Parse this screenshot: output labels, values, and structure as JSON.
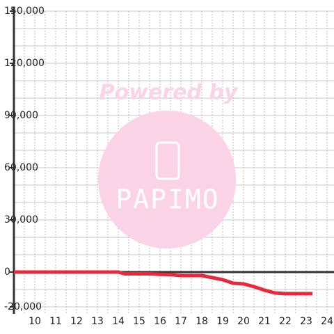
{
  "chart_data": {
    "type": "line",
    "watermark": {
      "top": "Powered by",
      "bottom": "PAPIMO"
    },
    "x": [
      9,
      14,
      14.3,
      15.5,
      16,
      16.5,
      17,
      18,
      18.5,
      19,
      19.5,
      20,
      20.5,
      21,
      21.5,
      22,
      23.3
    ],
    "series": [
      {
        "color": "#e8283c",
        "values": [
          0,
          0,
          -1000,
          -1000,
          -1300,
          -1500,
          -2000,
          -2000,
          -3200,
          -4400,
          -6400,
          -6800,
          -8400,
          -10400,
          -12000,
          -12400,
          -12400
        ]
      }
    ],
    "xlim": [
      9,
      25
    ],
    "ylim": [
      -24000,
      150000
    ],
    "xticks": [
      10,
      11,
      12,
      13,
      14,
      15,
      16,
      17,
      18,
      19,
      20,
      21,
      22,
      23,
      24
    ],
    "xminorticks": [
      9.5,
      10,
      10.5,
      11,
      11.5,
      12,
      12.5,
      13,
      13.5,
      14,
      14.5,
      15,
      15.5,
      16,
      16.5,
      17,
      17.5,
      18,
      18.5,
      19,
      19.5,
      20,
      20.5,
      21,
      21.5,
      22,
      22.5,
      23,
      23.5,
      24,
      24.5
    ],
    "yticks": [
      {
        "value": -20000,
        "label": "-20,000"
      },
      0,
      {
        "value": 30000,
        "label": "30,000"
      },
      {
        "value": 60000,
        "label": "60,000"
      },
      {
        "value": 90000,
        "label": "90,000"
      },
      {
        "value": 120000,
        "label": "120,000"
      },
      {
        "value": 150000,
        "label": "150,000"
      }
    ],
    "yminorticks": [
      -20000,
      -10000,
      10000,
      20000,
      30000,
      40000,
      50000,
      60000,
      70000,
      80000,
      90000,
      100000,
      110000,
      120000,
      130000,
      140000,
      150000
    ],
    "grid": true
  }
}
